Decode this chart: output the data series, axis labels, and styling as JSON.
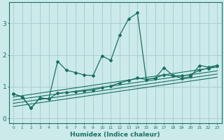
{
  "xlabel": "Humidex (Indice chaleur)",
  "bg_color": "#cceaea",
  "grid_color": "#aacece",
  "line_color": "#1a7060",
  "xlim": [
    -0.5,
    23.5
  ],
  "ylim": [
    -0.15,
    3.65
  ],
  "xtick_labels": [
    "0",
    "1",
    "2",
    "3",
    "4",
    "5",
    "6",
    "7",
    "8",
    "9",
    "10",
    "11",
    "12",
    "13",
    "14",
    "15",
    "16",
    "17",
    "18",
    "19",
    "20",
    "21",
    "22",
    "23"
  ],
  "ytick_vals": [
    0,
    1,
    2,
    3
  ],
  "main_x": [
    0,
    1,
    2,
    3,
    4,
    5,
    6,
    7,
    8,
    9,
    10,
    11,
    12,
    13,
    14,
    15,
    16,
    17,
    18,
    19,
    20,
    21,
    22,
    23
  ],
  "main_y": [
    0.78,
    0.68,
    0.33,
    0.65,
    0.62,
    1.8,
    1.52,
    1.45,
    1.37,
    1.35,
    1.97,
    1.83,
    2.62,
    3.13,
    3.32,
    1.23,
    1.27,
    1.6,
    1.35,
    1.27,
    1.32,
    1.67,
    1.62,
    1.67
  ],
  "line2_x": [
    0,
    1,
    2,
    3,
    4,
    5,
    6,
    7,
    8,
    9,
    10,
    11,
    12,
    13,
    14,
    15,
    16,
    17,
    18,
    19,
    20,
    21,
    22,
    23
  ],
  "line2_y": [
    0.78,
    0.68,
    0.33,
    0.65,
    0.62,
    0.8,
    0.82,
    0.85,
    0.87,
    0.9,
    0.97,
    1.03,
    1.12,
    1.2,
    1.28,
    1.23,
    1.27,
    1.38,
    1.35,
    1.35,
    1.38,
    1.52,
    1.58,
    1.67
  ],
  "reg_lines": [
    {
      "x": [
        0,
        23
      ],
      "y": [
        0.68,
        1.62
      ]
    },
    {
      "x": [
        0,
        23
      ],
      "y": [
        0.58,
        1.5
      ]
    },
    {
      "x": [
        0,
        23
      ],
      "y": [
        0.48,
        1.4
      ]
    },
    {
      "x": [
        0,
        23
      ],
      "y": [
        0.38,
        1.3
      ]
    }
  ]
}
